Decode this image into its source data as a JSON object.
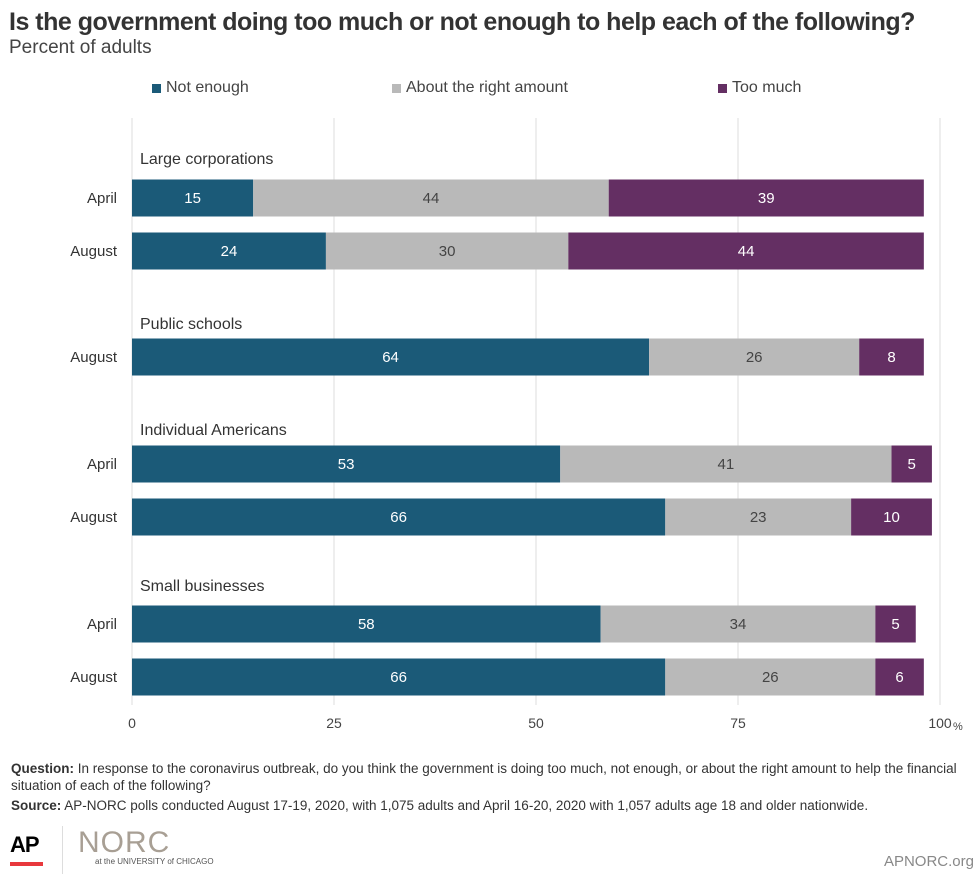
{
  "colors": {
    "not_enough": "#1b5a78",
    "about_right": "#b9b9b9",
    "too_much": "#642f63"
  },
  "chart_data": {
    "type": "bar",
    "orientation": "horizontal-stacked",
    "title": "Is the government doing too much or not enough to help each of the following?",
    "subtitle": "Percent of adults",
    "xlim": [
      0,
      100
    ],
    "x_ticks": [
      "0",
      "25",
      "50",
      "75",
      "100"
    ],
    "x_unit": "%",
    "grid": true,
    "legend_position": "top",
    "legend": [
      "Not enough",
      "About the right amount",
      "Too much"
    ],
    "groups": [
      {
        "label": "Large corporations",
        "rows": [
          {
            "label": "April",
            "values": [
              15,
              44,
              39
            ]
          },
          {
            "label": "August",
            "values": [
              24,
              30,
              44
            ]
          }
        ]
      },
      {
        "label": "Public schools",
        "rows": [
          {
            "label": "August",
            "values": [
              64,
              26,
              8
            ]
          }
        ]
      },
      {
        "label": "Individual Americans",
        "rows": [
          {
            "label": "April",
            "values": [
              53,
              41,
              5
            ]
          },
          {
            "label": "August",
            "values": [
              66,
              23,
              10
            ]
          }
        ]
      },
      {
        "label": "Small businesses",
        "rows": [
          {
            "label": "April",
            "values": [
              58,
              34,
              5
            ]
          },
          {
            "label": "August",
            "values": [
              66,
              26,
              6
            ]
          }
        ]
      }
    ]
  },
  "footer": {
    "question_label": "Question:",
    "question": "In response to the coronavirus outbreak, do you think the government is doing too much, not enough, or about the right amount to help the financial situation of each of the following?",
    "source_label": "Source:",
    "source": "AP-NORC polls conducted August 17-19, 2020, with 1,075 adults and April 16-20, 2020 with 1,057 adults age 18 and older nationwide.",
    "logo_ap": "AP",
    "logo_norc": "NORC",
    "logo_uchicago": "at the UNIVERSITY of CHICAGO",
    "site": "APNORC.org"
  }
}
